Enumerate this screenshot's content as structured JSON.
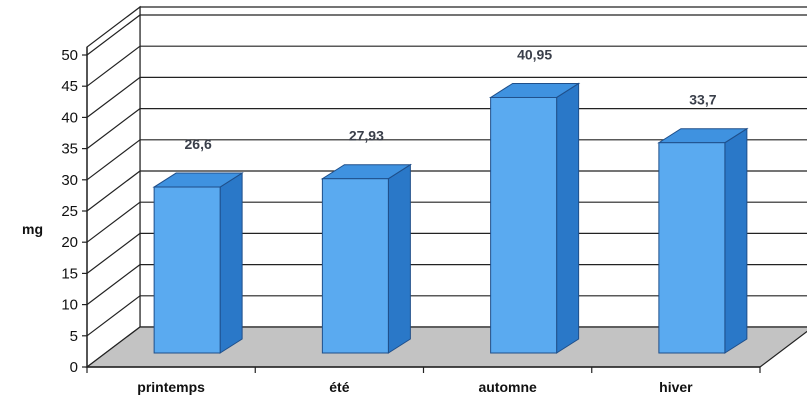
{
  "chart_data": {
    "type": "bar",
    "style": "3d-column",
    "categories": [
      "printemps",
      "été",
      "automne",
      "hiver"
    ],
    "values": [
      26.6,
      27.93,
      40.95,
      33.7
    ],
    "data_labels": [
      "26,6",
      "27,93",
      "40,95",
      "33,7"
    ],
    "ylabel": "mg",
    "ylim": [
      0,
      50
    ],
    "yticks": [
      "0",
      "5",
      "10",
      "15",
      "20",
      "25",
      "30",
      "35",
      "40",
      "45",
      "50"
    ],
    "grid": true,
    "legend": "none",
    "colors": {
      "bar_front": "#5aaaf0",
      "bar_side": "#2a78c8",
      "bar_top": "#3f92e0",
      "bar_edge": "#1f4f8a",
      "floor": "#c3c3c3",
      "gridline": "#222222"
    }
  }
}
